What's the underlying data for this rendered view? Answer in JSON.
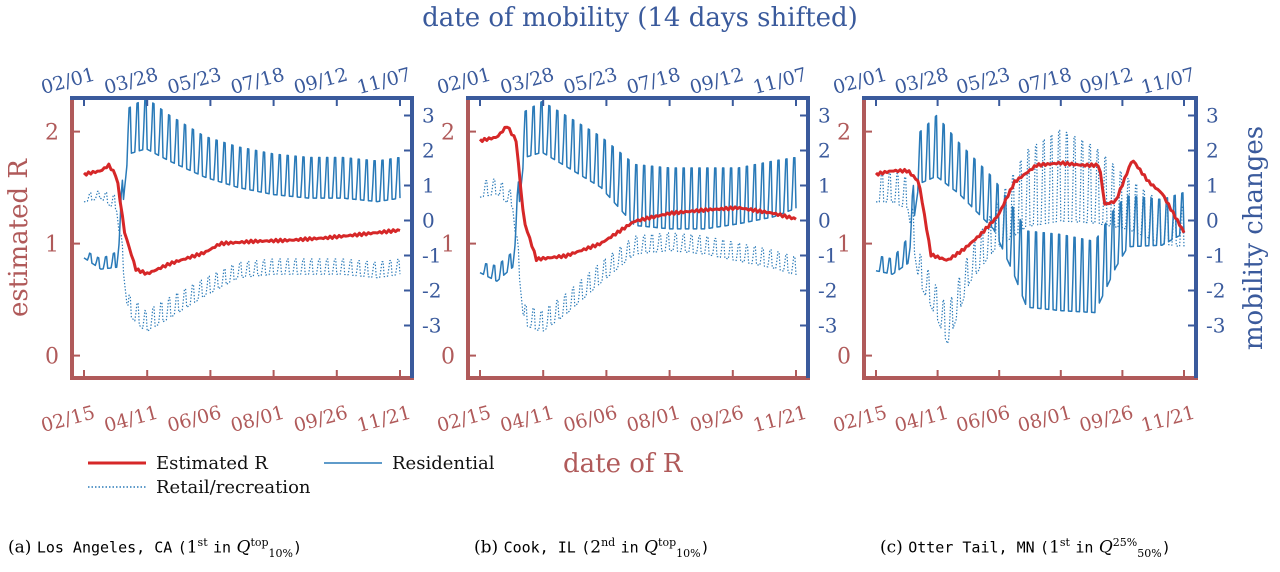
{
  "figure": {
    "top_axis_title": "date of mobility (14 days shifted)",
    "bottom_axis_title": "date of R",
    "left_axis_title": "estimated R",
    "right_axis_title": "mobility changes",
    "top_ticks": [
      "02/01",
      "03/28",
      "05/23",
      "07/18",
      "09/12",
      "11/07"
    ],
    "bottom_ticks": [
      "02/15",
      "04/11",
      "06/06",
      "08/01",
      "09/26",
      "11/21"
    ],
    "left_ticks": [
      "0",
      "1",
      "2"
    ],
    "right_ticks": [
      "-3",
      "-2",
      "-1",
      "0",
      "1",
      "2",
      "3"
    ],
    "colors": {
      "r_axis": "#b05a5a",
      "mob_axis": "#3a5a9c",
      "r_line": "#d62728",
      "mob_line": "#2a7ab8"
    }
  },
  "legend": {
    "estimated_r": "Estimated R",
    "residential": "Residential",
    "retail": "Retail/recreation"
  },
  "captions": [
    {
      "letter": "(a)",
      "place": "Los Angeles, CA",
      "open": "(",
      "rank": "1",
      "rank_sup": "st",
      "in": "in",
      "q": "Q",
      "q_sup": "top",
      "q_sub": "10%",
      "close": ")"
    },
    {
      "letter": "(b)",
      "place": "Cook, IL",
      "open": "(",
      "rank": "2",
      "rank_sup": "nd",
      "in": "in",
      "q": "Q",
      "q_sup": "top",
      "q_sub": "10%",
      "close": ")"
    },
    {
      "letter": "(c)",
      "place": "Otter Tail, MN",
      "open": "(",
      "rank": "1",
      "rank_sup": "st",
      "in": "in",
      "q": "Q",
      "q_sup": "25%",
      "q_sub": "50%",
      "close": ")"
    }
  ],
  "chart_data": [
    {
      "type": "line",
      "x_axis": "date of R",
      "x_range": [
        "2020-02-15",
        "2020-11-21"
      ],
      "ylim_r": [
        -0.2,
        2.3
      ],
      "ylim_mobility": [
        -4.5,
        3.5
      ],
      "series": [
        {
          "name": "Estimated R",
          "axis": "left",
          "style": "solid",
          "x": [
            "2020-02-15",
            "2020-03-01",
            "2020-03-08",
            "2020-03-15",
            "2020-03-22",
            "2020-04-01",
            "2020-04-11",
            "2020-05-01",
            "2020-06-01",
            "2020-06-15",
            "2020-07-15",
            "2020-08-15",
            "2020-09-15",
            "2020-10-15",
            "2020-11-21"
          ],
          "values": [
            1.62,
            1.65,
            1.7,
            1.6,
            1.1,
            0.77,
            0.73,
            0.82,
            0.92,
            1.0,
            1.02,
            1.03,
            1.05,
            1.08,
            1.12
          ]
        },
        {
          "name": "Residential",
          "axis": "right",
          "style": "solid",
          "x": [
            "2020-02-15",
            "2020-03-01",
            "2020-03-15",
            "2020-03-25",
            "2020-04-10",
            "2020-05-01",
            "2020-06-01",
            "2020-07-01",
            "2020-08-01",
            "2020-09-01",
            "2020-10-01",
            "2020-11-01",
            "2020-11-21"
          ],
          "values": [
            -1.0,
            -1.3,
            -1.2,
            2.3,
            2.5,
            2.1,
            1.6,
            1.3,
            1.1,
            1.0,
            1.0,
            0.9,
            1.0
          ],
          "weekly_amplitude": [
            0.15,
            0.2,
            0.3,
            0.9,
            1.0,
            0.9,
            0.8,
            0.8,
            0.8,
            0.8,
            0.8,
            0.8,
            0.8
          ]
        },
        {
          "name": "Retail/recreation",
          "axis": "right",
          "style": "dotted",
          "x": [
            "2020-02-15",
            "2020-03-01",
            "2020-03-15",
            "2020-03-25",
            "2020-04-10",
            "2020-05-01",
            "2020-06-01",
            "2020-07-01",
            "2020-08-01",
            "2020-09-01",
            "2020-10-01",
            "2020-11-01",
            "2020-11-21"
          ],
          "values": [
            0.6,
            0.7,
            0.4,
            -2.5,
            -3.0,
            -2.6,
            -2.0,
            -1.5,
            -1.4,
            -1.4,
            -1.4,
            -1.5,
            -1.4
          ],
          "weekly_amplitude": [
            0.15,
            0.15,
            0.3,
            0.4,
            0.4,
            0.4,
            0.35,
            0.3,
            0.3,
            0.3,
            0.3,
            0.3,
            0.3
          ]
        }
      ]
    },
    {
      "type": "line",
      "x_axis": "date of R",
      "x_range": [
        "2020-02-15",
        "2020-11-21"
      ],
      "ylim_r": [
        -0.2,
        2.3
      ],
      "ylim_mobility": [
        -4.5,
        3.5
      ],
      "series": [
        {
          "name": "Estimated R",
          "axis": "left",
          "style": "solid",
          "x": [
            "2020-02-15",
            "2020-03-01",
            "2020-03-10",
            "2020-03-18",
            "2020-03-25",
            "2020-04-05",
            "2020-05-01",
            "2020-06-01",
            "2020-07-01",
            "2020-08-01",
            "2020-09-01",
            "2020-10-01",
            "2020-11-01",
            "2020-11-21"
          ],
          "values": [
            1.92,
            1.95,
            2.05,
            1.92,
            1.2,
            0.86,
            0.89,
            1.0,
            1.2,
            1.27,
            1.3,
            1.32,
            1.27,
            1.22
          ]
        },
        {
          "name": "Residential",
          "axis": "right",
          "style": "solid",
          "x": [
            "2020-02-15",
            "2020-03-01",
            "2020-03-15",
            "2020-03-25",
            "2020-04-10",
            "2020-05-01",
            "2020-06-01",
            "2020-07-01",
            "2020-08-01",
            "2020-09-01",
            "2020-10-01",
            "2020-11-01",
            "2020-11-21"
          ],
          "values": [
            -1.4,
            -1.6,
            -1.2,
            2.2,
            2.4,
            2.0,
            1.4,
            0.4,
            0.3,
            0.3,
            0.4,
            0.6,
            0.8
          ],
          "weekly_amplitude": [
            0.2,
            0.3,
            0.3,
            0.9,
            1.0,
            1.0,
            1.0,
            1.2,
            1.2,
            1.2,
            1.1,
            1.1,
            1.0
          ]
        },
        {
          "name": "Retail/recreation",
          "axis": "right",
          "style": "dotted",
          "x": [
            "2020-02-15",
            "2020-03-01",
            "2020-03-15",
            "2020-03-25",
            "2020-04-10",
            "2020-05-01",
            "2020-06-01",
            "2020-07-01",
            "2020-08-01",
            "2020-09-01",
            "2020-10-01",
            "2020-11-01",
            "2020-11-21"
          ],
          "values": [
            0.8,
            0.9,
            0.5,
            -2.8,
            -3.0,
            -2.5,
            -1.6,
            -0.8,
            -0.7,
            -0.8,
            -1.0,
            -1.2,
            -1.4
          ],
          "weekly_amplitude": [
            0.3,
            0.3,
            0.3,
            0.4,
            0.4,
            0.4,
            0.4,
            0.35,
            0.35,
            0.35,
            0.35,
            0.35,
            0.35
          ]
        }
      ]
    },
    {
      "type": "line",
      "x_axis": "date of R",
      "x_range": [
        "2020-02-15",
        "2020-11-21"
      ],
      "ylim_r": [
        -0.2,
        2.3
      ],
      "ylim_mobility": [
        -4.5,
        3.5
      ],
      "series": [
        {
          "name": "Estimated R",
          "axis": "left",
          "style": "solid",
          "x": [
            "2020-02-15",
            "2020-03-01",
            "2020-03-15",
            "2020-03-25",
            "2020-04-05",
            "2020-04-20",
            "2020-05-05",
            "2020-05-20",
            "2020-06-05",
            "2020-06-20",
            "2020-07-10",
            "2020-08-01",
            "2020-08-20",
            "2020-09-05",
            "2020-09-10",
            "2020-09-20",
            "2020-10-05",
            "2020-10-20",
            "2020-11-01",
            "2020-11-21"
          ],
          "values": [
            1.62,
            1.65,
            1.65,
            1.55,
            0.9,
            0.85,
            0.95,
            1.08,
            1.25,
            1.55,
            1.7,
            1.72,
            1.7,
            1.7,
            1.35,
            1.38,
            1.75,
            1.55,
            1.45,
            1.1
          ]
        },
        {
          "name": "Residential",
          "axis": "right",
          "style": "solid",
          "x": [
            "2020-02-15",
            "2020-03-01",
            "2020-03-15",
            "2020-03-25",
            "2020-04-10",
            "2020-05-01",
            "2020-06-01",
            "2020-06-20",
            "2020-07-01",
            "2020-08-01",
            "2020-09-01",
            "2020-09-20",
            "2020-10-01",
            "2020-11-01",
            "2020-11-21"
          ],
          "values": [
            -1.3,
            -1.4,
            -1.0,
            1.5,
            1.8,
            1.2,
            0.2,
            -1.0,
            -1.8,
            -1.9,
            -2.0,
            -0.8,
            -0.3,
            -0.3,
            0.0
          ],
          "weekly_amplitude": [
            0.3,
            0.3,
            0.5,
            1.0,
            1.2,
            1.0,
            1.0,
            1.3,
            1.5,
            1.5,
            1.4,
            1.2,
            1.0,
            0.9,
            0.8
          ]
        },
        {
          "name": "Retail/recreation",
          "axis": "right",
          "style": "dotted",
          "x": [
            "2020-02-15",
            "2020-03-01",
            "2020-03-15",
            "2020-03-25",
            "2020-04-10",
            "2020-04-20",
            "2020-05-10",
            "2020-06-01",
            "2020-07-01",
            "2020-08-01",
            "2020-09-01",
            "2020-10-01",
            "2020-11-01",
            "2020-11-21"
          ],
          "values": [
            0.8,
            0.8,
            0.6,
            -1.5,
            -2.5,
            -3.2,
            -1.5,
            -0.5,
            0.5,
            0.8,
            0.6,
            0.2,
            -0.3,
            -0.4
          ],
          "weekly_amplitude": [
            0.6,
            0.6,
            0.6,
            0.6,
            0.6,
            0.7,
            0.6,
            0.8,
            1.5,
            1.8,
            1.5,
            1.0,
            0.8,
            0.8
          ]
        }
      ]
    }
  ]
}
